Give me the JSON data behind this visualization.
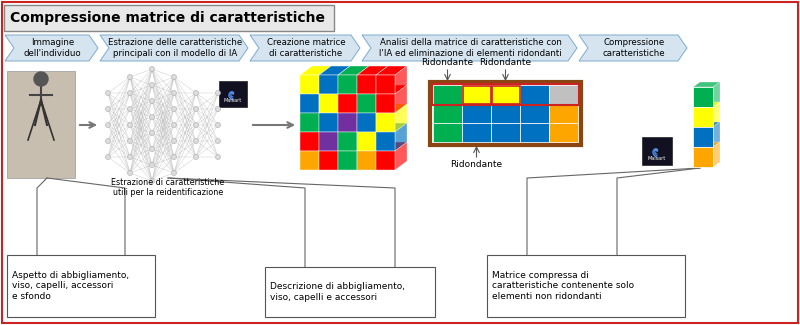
{
  "title": "Compressione matrice di caratteristiche",
  "bg_color": "#ffffff",
  "border_color": "#cc2222",
  "flow_steps": [
    "Immagine\ndell'individuo",
    "Estrazione delle caratteristiche\nprincipali con il modello di IA",
    "Creazione matrice\ndi caratteristiche",
    "Analisi della matrice di caratteristiche con\nl'IA ed eliminazione di elementi ridondanti",
    "Compressione\ncaratteristiche"
  ],
  "flow_bg": "#d6e4f0",
  "flow_border": "#7aabcf",
  "box_texts": [
    "Aspetto di abbigliamento,\nviso, capelli, accessori\ne sfondo",
    "Descrizione di abbigliamento,\nviso, capelli e accessori",
    "Matrice compressa di\ncaratteristiche contenente solo\nelementi non ridondanti"
  ],
  "ridondante_labels": [
    "Ridondante",
    "Ridondante",
    "Ridondante"
  ],
  "extraction_label": "Estrazione di caratteristiche\nutili per la reidentificazione",
  "matrix_colors": [
    [
      "#ffff00",
      "#0070c0",
      "#00b050",
      "#ff0000",
      "#ff0000"
    ],
    [
      "#0070c0",
      "#ffff00",
      "#ff0000",
      "#00b050",
      "#ff0000"
    ],
    [
      "#00b050",
      "#0070c0",
      "#7030a0",
      "#0070c0",
      "#ffff00"
    ],
    [
      "#ff0000",
      "#7030a0",
      "#00b050",
      "#ffff00",
      "#0070c0"
    ],
    [
      "#ffa500",
      "#ff0000",
      "#00b050",
      "#ffa500",
      "#ff0000"
    ]
  ],
  "flat_row1": [
    "#00b050",
    "#ffff00",
    "#ffff00",
    "#0070c0",
    "#c0c0c0"
  ],
  "flat_row2": [
    "#00b050",
    "#0070c0",
    "#0070c0",
    "#0070c0",
    "#ffa500"
  ],
  "flat_row3": [
    "#00b050",
    "#0070c0",
    "#0070c0",
    "#0070c0",
    "#ffa500"
  ],
  "flat_orange_border": "#8B4513",
  "redundant_border": "#cc2222",
  "compressed_colors": [
    "#00b050",
    "#ffff00",
    "#0070c0",
    "#ffa500"
  ],
  "maisart_bg": "#111122",
  "maisart_spiral": "#5599ff"
}
